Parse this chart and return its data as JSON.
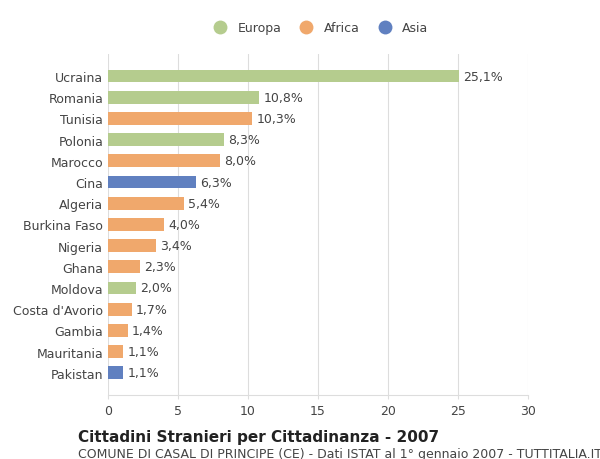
{
  "countries": [
    "Ucraina",
    "Romania",
    "Tunisia",
    "Polonia",
    "Marocco",
    "Cina",
    "Algeria",
    "Burkina Faso",
    "Nigeria",
    "Ghana",
    "Moldova",
    "Costa d'Avorio",
    "Gambia",
    "Mauritania",
    "Pakistan"
  ],
  "values": [
    25.1,
    10.8,
    10.3,
    8.3,
    8.0,
    6.3,
    5.4,
    4.0,
    3.4,
    2.3,
    2.0,
    1.7,
    1.4,
    1.1,
    1.1
  ],
  "labels": [
    "25,1%",
    "10,8%",
    "10,3%",
    "8,3%",
    "8,0%",
    "6,3%",
    "5,4%",
    "4,0%",
    "3,4%",
    "2,3%",
    "2,0%",
    "1,7%",
    "1,4%",
    "1,1%",
    "1,1%"
  ],
  "continents": [
    "Europa",
    "Europa",
    "Africa",
    "Europa",
    "Africa",
    "Asia",
    "Africa",
    "Africa",
    "Africa",
    "Africa",
    "Europa",
    "Africa",
    "Africa",
    "Africa",
    "Asia"
  ],
  "colors": {
    "Europa": "#b5cc8e",
    "Africa": "#f0a86c",
    "Asia": "#6080c0"
  },
  "legend_order": [
    "Europa",
    "Africa",
    "Asia"
  ],
  "xlim": [
    0,
    30
  ],
  "xticks": [
    0,
    5,
    10,
    15,
    20,
    25,
    30
  ],
  "title_bold": "Cittadini Stranieri per Cittadinanza - 2007",
  "subtitle": "COMUNE DI CASAL DI PRINCIPE (CE) - Dati ISTAT al 1° gennaio 2007 - TUTTITALIA.IT",
  "background_color": "#ffffff",
  "grid_color": "#dddddd",
  "bar_height": 0.6,
  "label_fontsize": 9,
  "tick_fontsize": 9,
  "title_fontsize": 11,
  "subtitle_fontsize": 9
}
